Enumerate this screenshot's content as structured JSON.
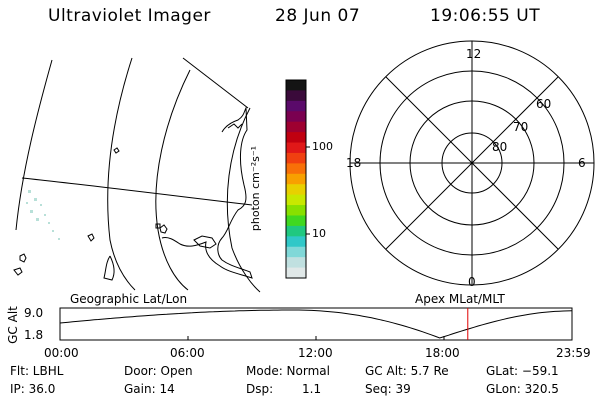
{
  "header": {
    "title": "Ultraviolet Imager",
    "date": "28 Jun 07",
    "time": "19:06:55 UT"
  },
  "colorbar": {
    "axis_label": "photon cm⁻²s⁻¹",
    "ticks": [
      "100",
      "10"
    ],
    "colors": [
      "#141414",
      "#3a0a3a",
      "#5a0a6a",
      "#7a0050",
      "#9e0030",
      "#c00010",
      "#e01818",
      "#f04010",
      "#f87008",
      "#f8a000",
      "#e8d000",
      "#c8e800",
      "#88e000",
      "#40d820",
      "#20c880",
      "#30c8c8",
      "#80d8d8",
      "#c0e0e0",
      "#e0e8e8"
    ]
  },
  "geo_map": {
    "label": "Geographic Lat/Lon"
  },
  "polar": {
    "label": "Apex MLat/MLT",
    "hour_labels": [
      "12",
      "18",
      "6",
      "0"
    ],
    "lat_labels": [
      "60",
      "70",
      "80"
    ]
  },
  "timeline": {
    "ylabel": "GC Alt",
    "y_ticks": [
      "9.0",
      "1.8"
    ],
    "x_ticks": [
      "00:00",
      "06:00",
      "12:00",
      "18:00",
      "23:59"
    ],
    "current_hour": 19.115,
    "marker_color": "#e00000"
  },
  "footer": {
    "filter": "Flt: LBHL",
    "ip": "IP: 36.0",
    "door": "Door: Open",
    "gain": "Gain: 14",
    "mode": "Mode: Normal",
    "dsp_label": "Dsp:",
    "dsp_value": "1.1",
    "gc_alt": "GC Alt: 5.7 Re",
    "seq": "Seq: 39",
    "glat": "GLat: −59.1",
    "glon": "GLon: 320.5"
  }
}
